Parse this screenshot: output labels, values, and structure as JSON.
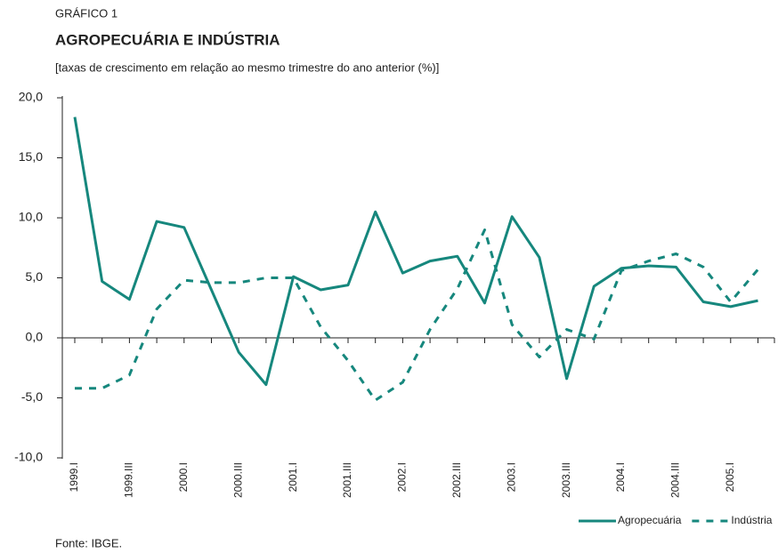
{
  "chart_data": {
    "type": "line",
    "kicker": "GRÁFICO 1",
    "title": "AGROPECUÁRIA  E  INDÚSTRIA",
    "subtitle": "[taxas de crescimento em relação ao mesmo trimestre do ano anterior (%)]",
    "source": "Fonte:  IBGE.",
    "categories": [
      "1999.I",
      null,
      "1999.III",
      null,
      "2000.I",
      null,
      "2000.III",
      null,
      "2001.I",
      null,
      "2001.III",
      null,
      "2002.I",
      null,
      "2002.III",
      null,
      "2003.I",
      null,
      "2003.III",
      null,
      "2004.I",
      null,
      "2004.III",
      null,
      "2005.I",
      null
    ],
    "series": [
      {
        "name": "Agropecuária",
        "color": "#16877d",
        "dash": false,
        "values": [
          18.4,
          4.7,
          3.2,
          9.7,
          9.2,
          4.0,
          -1.2,
          -3.9,
          5.1,
          4.0,
          4.4,
          10.5,
          5.4,
          6.4,
          6.8,
          2.9,
          10.1,
          6.7,
          -3.4,
          4.3,
          5.8,
          6.0,
          5.9,
          3.0,
          2.6,
          3.1
        ]
      },
      {
        "name": "Indústria",
        "color": "#16877d",
        "dash": true,
        "values": [
          -4.2,
          -4.2,
          -3.1,
          2.4,
          4.8,
          4.6,
          4.6,
          5.0,
          5.0,
          0.9,
          -1.9,
          -5.2,
          -3.7,
          0.7,
          4.1,
          9.0,
          1.1,
          -1.6,
          0.7,
          -0.1,
          5.6,
          6.4,
          7.0,
          5.9,
          3.0,
          5.7
        ]
      }
    ],
    "ylim": [
      -10,
      20
    ],
    "yticks": [
      {
        "value": -10,
        "label": "-10,0"
      },
      {
        "value": -5,
        "label": "-5,0"
      },
      {
        "value": 0,
        "label": "0,0"
      },
      {
        "value": 5,
        "label": "5,0"
      },
      {
        "value": 10,
        "label": "10,0"
      },
      {
        "value": 15,
        "label": "15,0"
      },
      {
        "value": 20,
        "label": "20,0"
      }
    ],
    "legend": "bottom-right"
  }
}
